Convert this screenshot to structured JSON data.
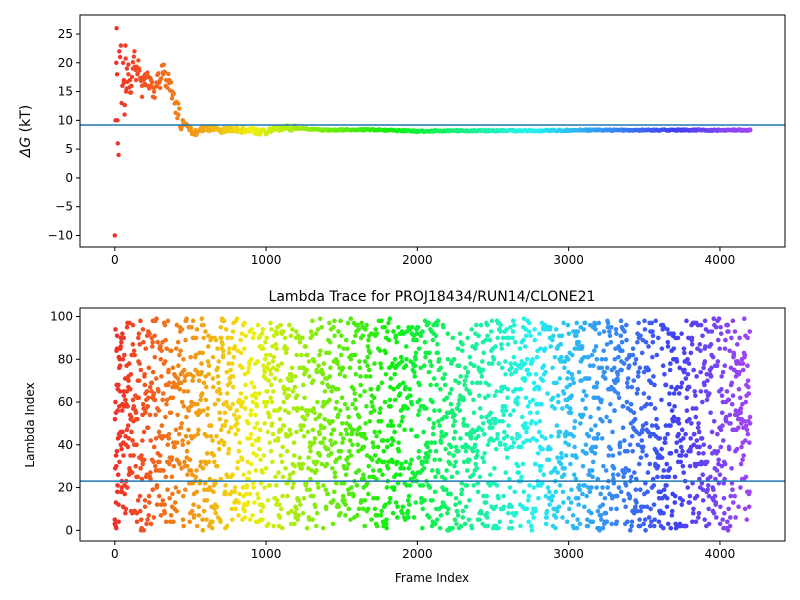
{
  "chart_data": [
    {
      "type": "scatter",
      "title": "",
      "xlabel": "",
      "ylabel": "ΔG (kT)",
      "ylabel_symbol": "ΔG",
      "ylabel_unit": " (kT)",
      "xlim": [
        -230,
        4430
      ],
      "ylim": [
        -12,
        28.3
      ],
      "x_ticks": [
        0,
        1000,
        2000,
        3000,
        4000
      ],
      "x_tick_labels": [
        "0",
        "1000",
        "2000",
        "3000",
        "4000"
      ],
      "y_ticks": [
        -10,
        -5,
        0,
        5,
        10,
        15,
        20,
        25
      ],
      "y_tick_labels": [
        "−10",
        "−5",
        "0",
        "5",
        "10",
        "15",
        "20",
        "25"
      ],
      "hline": 9.2,
      "hline_color": "#1f77b4",
      "colormap": "rainbow (red → violet with increasing frame index)",
      "series": [
        {
          "points": [
            [
              0,
              -10
            ],
            [
              5,
              10
            ],
            [
              10,
              20
            ],
            [
              12,
              26
            ],
            [
              15,
              18
            ],
            [
              18,
              10
            ],
            [
              20,
              6
            ],
            [
              25,
              4
            ],
            [
              30,
              22
            ],
            [
              35,
              21
            ],
            [
              40,
              23
            ],
            [
              45,
              13
            ],
            [
              50,
              16
            ],
            [
              55,
              20
            ],
            [
              60,
              17
            ],
            [
              65,
              11
            ],
            [
              70,
              23
            ],
            [
              75,
              15
            ],
            [
              80,
              19
            ],
            [
              90,
              18
            ],
            [
              100,
              17
            ],
            [
              110,
              16
            ],
            [
              120,
              19
            ],
            [
              130,
              22
            ],
            [
              140,
              17
            ],
            [
              150,
              18
            ],
            [
              160,
              19
            ],
            [
              170,
              17
            ],
            [
              180,
              16
            ],
            [
              200,
              18
            ],
            [
              220,
              16
            ],
            [
              240,
              17
            ],
            [
              260,
              15
            ],
            [
              280,
              16
            ],
            [
              300,
              17
            ],
            [
              320,
              18
            ],
            [
              340,
              17
            ],
            [
              360,
              17
            ],
            [
              380,
              15
            ],
            [
              400,
              13
            ],
            [
              420,
              11
            ],
            [
              450,
              10
            ],
            [
              480,
              9
            ],
            [
              510,
              8
            ],
            [
              540,
              7.8
            ],
            [
              570,
              8.2
            ],
            [
              600,
              8.4
            ],
            [
              650,
              8.8
            ],
            [
              700,
              8.2
            ],
            [
              750,
              8.6
            ],
            [
              800,
              8.4
            ],
            [
              900,
              8.2
            ],
            [
              1000,
              7.9
            ],
            [
              1100,
              8.8
            ],
            [
              1200,
              8.6
            ],
            [
              1400,
              8.3
            ],
            [
              1600,
              8.4
            ],
            [
              1800,
              8.3
            ],
            [
              2000,
              8.1
            ],
            [
              2200,
              8.2
            ],
            [
              2500,
              8.2
            ],
            [
              2800,
              8.2
            ],
            [
              3100,
              8.3
            ],
            [
              3400,
              8.3
            ],
            [
              3700,
              8.3
            ],
            [
              4000,
              8.3
            ],
            [
              4200,
              8.3
            ]
          ]
        }
      ]
    },
    {
      "type": "scatter",
      "title": "Lambda Trace for PROJ18434/RUN14/CLONE21",
      "xlabel": "Frame Index",
      "ylabel": "Lambda Index",
      "xlim": [
        -230,
        4430
      ],
      "ylim": [
        -5,
        104
      ],
      "x_ticks": [
        0,
        1000,
        2000,
        3000,
        4000
      ],
      "x_tick_labels": [
        "0",
        "1000",
        "2000",
        "3000",
        "4000"
      ],
      "y_ticks": [
        0,
        20,
        40,
        60,
        80,
        100
      ],
      "y_tick_labels": [
        "0",
        "20",
        "40",
        "60",
        "80",
        "100"
      ],
      "hline": 23,
      "hline_color": "#1f77b4",
      "colormap": "rainbow (red → violet with increasing frame index)",
      "frame_range": [
        0,
        4200
      ],
      "lambda_range": [
        0,
        99
      ],
      "series": [
        {
          "points": [
            [
              0,
              5
            ],
            [
              5,
              94
            ],
            [
              8,
              55
            ],
            [
              10,
              30
            ],
            [
              15,
              85
            ],
            [
              20,
              66
            ],
            [
              25,
              12
            ],
            [
              30,
              58
            ],
            [
              35,
              77
            ],
            [
              40,
              40
            ],
            [
              45,
              20
            ],
            [
              50,
              92
            ],
            [
              60,
              63
            ],
            [
              70,
              8
            ],
            [
              80,
              47
            ],
            [
              90,
              72
            ],
            [
              100,
              28
            ],
            [
              120,
              96
            ],
            [
              150,
              52
            ],
            [
              200,
              14
            ],
            [
              250,
              88
            ],
            [
              300,
              35
            ],
            [
              400,
              68
            ],
            [
              500,
              22
            ],
            [
              700,
              90
            ],
            [
              900,
              45
            ],
            [
              1200,
              10
            ],
            [
              1500,
              75
            ],
            [
              1800,
              30
            ],
            [
              2100,
              60
            ],
            [
              2400,
              5
            ],
            [
              2700,
              95
            ],
            [
              3000,
              40
            ],
            [
              3300,
              70
            ],
            [
              3600,
              15
            ],
            [
              3900,
              85
            ],
            [
              4200,
              50
            ]
          ]
        }
      ]
    }
  ]
}
